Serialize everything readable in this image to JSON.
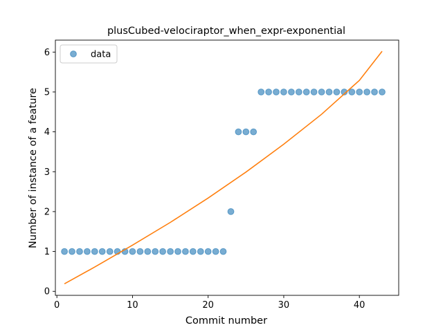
{
  "chart_data": {
    "type": "scatter",
    "title": "plusCubed-velociraptor_when_expr-exponential",
    "xlabel": "Commit number",
    "ylabel": "Number of instance of a feature",
    "xlim": [
      -0.2,
      45.2
    ],
    "ylim": [
      -0.1,
      6.3
    ],
    "xticks": [
      0,
      10,
      20,
      30,
      40
    ],
    "yticks": [
      0,
      1,
      2,
      3,
      4,
      5,
      6
    ],
    "grid": false,
    "legend": {
      "placement": "top-left",
      "entries": [
        "data"
      ]
    },
    "series": [
      {
        "name": "data",
        "type": "scatter",
        "color": "#1f77b4",
        "x": [
          1,
          2,
          3,
          4,
          5,
          6,
          7,
          8,
          9,
          10,
          11,
          12,
          13,
          14,
          15,
          16,
          17,
          18,
          19,
          20,
          21,
          22,
          23,
          24,
          25,
          26,
          27,
          28,
          29,
          30,
          31,
          32,
          33,
          34,
          35,
          36,
          37,
          38,
          39,
          40,
          41,
          42,
          43
        ],
        "y": [
          1,
          1,
          1,
          1,
          1,
          1,
          1,
          1,
          1,
          1,
          1,
          1,
          1,
          1,
          1,
          1,
          1,
          1,
          1,
          1,
          1,
          1,
          2,
          4,
          4,
          4,
          5,
          5,
          5,
          5,
          5,
          5,
          5,
          5,
          5,
          5,
          5,
          5,
          5,
          5,
          5,
          5,
          5
        ]
      },
      {
        "type": "line",
        "color": "#ff7f0e",
        "x": [
          1,
          5,
          10,
          15,
          20,
          25,
          30,
          35,
          40,
          43
        ],
        "y": [
          0.19,
          0.61,
          1.16,
          1.73,
          2.34,
          2.99,
          3.69,
          4.44,
          5.29,
          6.02
        ]
      }
    ]
  }
}
